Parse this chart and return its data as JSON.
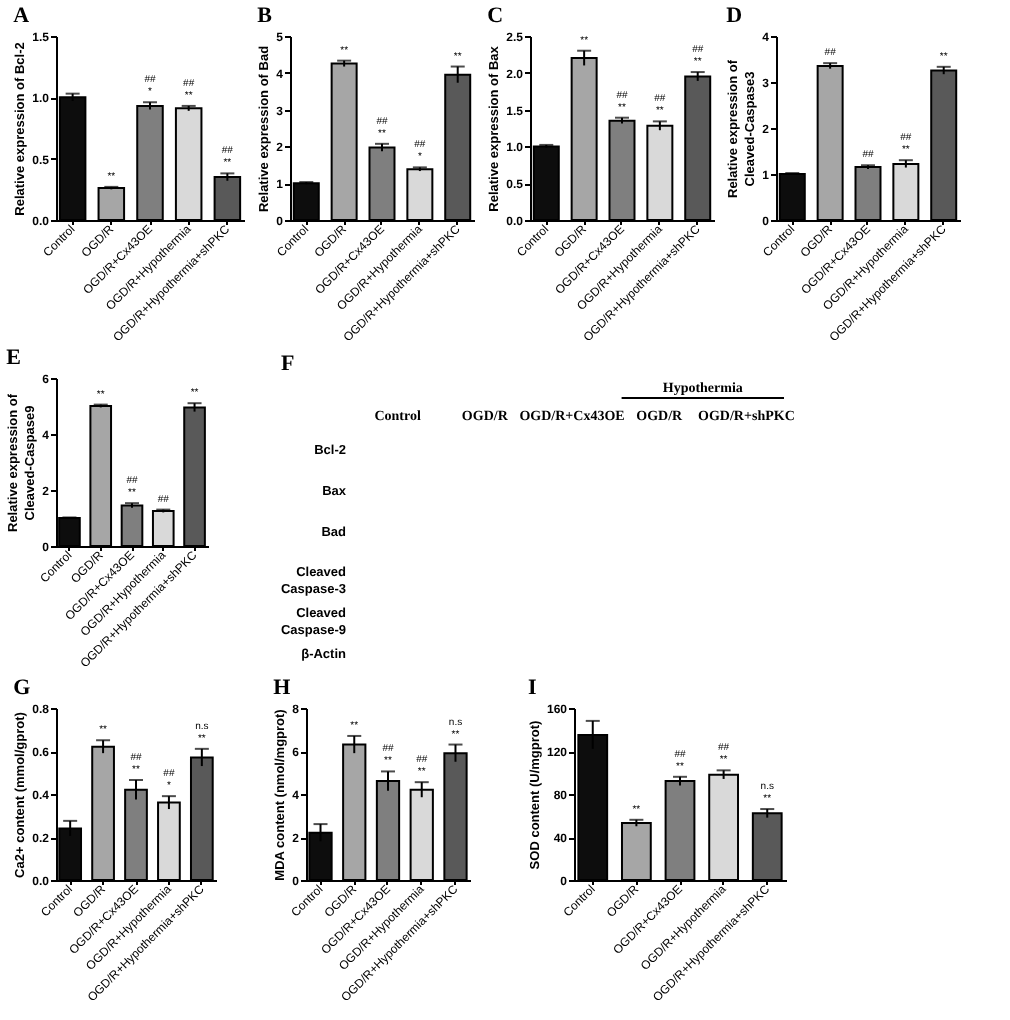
{
  "chart_data": [
    {
      "type": "bar",
      "title": "A",
      "ylabel": "Relative expression of Bcl-2",
      "categories": [
        "Control",
        "OGD/R",
        "OGD/R+Cx43OE",
        "OGD/R+Hypothermia",
        "OGD/R+Hypothermia+shPKC"
      ],
      "values": [
        1.0,
        0.26,
        0.93,
        0.91,
        0.35
      ],
      "errors": [
        0.03,
        0.01,
        0.03,
        0.02,
        0.03
      ],
      "colors": [
        "#0d0d0d",
        "#a6a6a6",
        "#7f7f7f",
        "#d9d9d9",
        "#595959"
      ],
      "ylim": [
        0,
        1.5
      ],
      "yticks": [
        {
          "value": 0,
          "label": "0.0"
        },
        0.5,
        {
          "value": 1,
          "label": "1.0"
        },
        1.5
      ],
      "annotations": [
        {
          "text": "**",
          "x": "OGD/R",
          "y": 0.27
        },
        {
          "text": "*",
          "x": "OGD/R+Cx43OE",
          "y": 0.96
        },
        {
          "text": "##",
          "x": "OGD/R+Cx43OE",
          "y": 0.96
        },
        {
          "text": "**",
          "x": "OGD/R+Hypothermia",
          "y": 0.93
        },
        {
          "text": "##",
          "x": "OGD/R+Hypothermia",
          "y": 0.93
        },
        {
          "text": "**",
          "x": "OGD/R+Hypothermia+shPKC",
          "y": 0.38
        },
        {
          "text": "##",
          "x": "OGD/R+Hypothermia+shPKC",
          "y": 0.38
        }
      ]
    },
    {
      "type": "bar",
      "title": "B",
      "ylabel": "Relative expression of Bad",
      "categories": [
        "Control",
        "OGD/R",
        "OGD/R+Cx43OE",
        "OGD/R+Hypothermia",
        "OGD/R+Hypothermia+shPKC"
      ],
      "values": [
        1.0,
        4.25,
        1.97,
        1.38,
        3.95
      ],
      "errors": [
        0.03,
        0.08,
        0.1,
        0.05,
        0.22
      ],
      "colors": [
        "#0d0d0d",
        "#a6a6a6",
        "#7f7f7f",
        "#d9d9d9",
        "#595959"
      ],
      "ylim": [
        0,
        5
      ],
      "yticks": [
        0,
        1,
        2,
        3,
        4,
        5
      ],
      "annotations": [
        {
          "text": "**",
          "x": "OGD/R",
          "y": 4.33
        },
        {
          "text": "**",
          "x": "OGD/R+Cx43OE",
          "y": 2.07
        },
        {
          "text": "##",
          "x": "OGD/R+Cx43OE",
          "y": 2.07
        },
        {
          "text": "*",
          "x": "OGD/R+Hypothermia",
          "y": 1.43
        },
        {
          "text": "##",
          "x": "OGD/R+Hypothermia",
          "y": 1.43
        },
        {
          "text": "**",
          "x": "OGD/R+Hypothermia+shPKC",
          "y": 4.17
        }
      ]
    },
    {
      "type": "bar",
      "title": "C",
      "ylabel": "Relative expression of Bax",
      "categories": [
        "Control",
        "OGD/R",
        "OGD/R+Cx43OE",
        "OGD/R+Hypothermia",
        "OGD/R+Hypothermia+shPKC"
      ],
      "values": [
        1.0,
        2.2,
        1.35,
        1.28,
        1.95
      ],
      "errors": [
        0.02,
        0.1,
        0.04,
        0.06,
        0.06
      ],
      "colors": [
        "#0d0d0d",
        "#a6a6a6",
        "#7f7f7f",
        "#d9d9d9",
        "#595959"
      ],
      "ylim": [
        0,
        2.5
      ],
      "yticks": [
        {
          "value": 0,
          "label": "0.0"
        },
        0.5,
        {
          "value": 1,
          "label": "1.0"
        },
        1.5,
        {
          "value": 2,
          "label": "2.0"
        },
        2.5
      ],
      "annotations": [
        {
          "text": "**",
          "x": "OGD/R",
          "y": 2.3
        },
        {
          "text": "**",
          "x": "OGD/R+Cx43OE",
          "y": 1.39
        },
        {
          "text": "##",
          "x": "OGD/R+Cx43OE",
          "y": 1.39
        },
        {
          "text": "**",
          "x": "OGD/R+Hypothermia",
          "y": 1.34
        },
        {
          "text": "##",
          "x": "OGD/R+Hypothermia",
          "y": 1.34
        },
        {
          "text": "**",
          "x": "OGD/R+Hypothermia+shPKC",
          "y": 2.01
        },
        {
          "text": "##",
          "x": "OGD/R+Hypothermia+shPKC",
          "y": 2.01
        }
      ]
    },
    {
      "type": "bar",
      "title": "D",
      "ylabel": "Relative expression of\nCleaved-Caspase3",
      "categories": [
        "Control",
        "OGD/R",
        "OGD/R+Cx43OE",
        "OGD/R+Hypothermia",
        "OGD/R+Hypothermia+shPKC"
      ],
      "values": [
        1.0,
        3.35,
        1.15,
        1.22,
        3.25
      ],
      "errors": [
        0.02,
        0.06,
        0.04,
        0.08,
        0.08
      ],
      "colors": [
        "#0d0d0d",
        "#a6a6a6",
        "#7f7f7f",
        "#d9d9d9",
        "#595959"
      ],
      "ylim": [
        0,
        4
      ],
      "yticks": [
        0,
        1,
        2,
        3,
        4
      ],
      "annotations": [
        {
          "text": "##",
          "x": "OGD/R",
          "y": 3.41
        },
        {
          "text": "##",
          "x": "OGD/R+Cx43OE",
          "y": 1.19
        },
        {
          "text": "**",
          "x": "OGD/R+Hypothermia",
          "y": 1.3
        },
        {
          "text": "##",
          "x": "OGD/R+Hypothermia",
          "y": 1.3
        },
        {
          "text": "**",
          "x": "OGD/R+Hypothermia+shPKC",
          "y": 3.33
        }
      ]
    },
    {
      "type": "bar",
      "title": "E",
      "ylabel": "Relative expression of\nCleaved-Caspase9",
      "categories": [
        "Control",
        "OGD/R",
        "OGD/R+Cx43OE",
        "OGD/R+Hypothermia",
        "OGD/R+Hypothermia+shPKC"
      ],
      "values": [
        1.0,
        5.0,
        1.45,
        1.25,
        4.95
      ],
      "errors": [
        0.02,
        0.05,
        0.08,
        0.05,
        0.15
      ],
      "colors": [
        "#0d0d0d",
        "#a6a6a6",
        "#7f7f7f",
        "#d9d9d9",
        "#595959"
      ],
      "ylim": [
        0,
        6
      ],
      "yticks": [
        0,
        2,
        4,
        6
      ],
      "annotations": [
        {
          "text": "**",
          "x": "OGD/R",
          "y": 5.05
        },
        {
          "text": "**",
          "x": "OGD/R+Cx43OE",
          "y": 1.53
        },
        {
          "text": "##",
          "x": "OGD/R+Cx43OE",
          "y": 1.53
        },
        {
          "text": "##",
          "x": "OGD/R+Hypothermia",
          "y": 1.3
        },
        {
          "text": "**",
          "x": "OGD/R+Hypothermia+shPKC",
          "y": 5.1
        }
      ]
    },
    {
      "type": "other",
      "title": "F",
      "categories": [
        "Control",
        "OGD/R",
        "OGD/R+Cx43OE",
        "OGD/R",
        "OGD/R+shPKC"
      ],
      "y_categories": [
        "Bcl-2",
        "Bax",
        "Bad",
        "Cleaved\nCaspase-3",
        "Cleaved\nCaspase-9",
        "β-Actin"
      ],
      "annotations": [
        "Hypothermia"
      ]
    },
    {
      "type": "bar",
      "title": "G",
      "ylabel": "Ca2+ content (mmol/gprot)",
      "categories": [
        "Control",
        "OGD/R",
        "OGD/R+Cx43OE",
        "OGD/R+Hypothermia",
        "OGD/R+Hypothermia+shPKC"
      ],
      "values": [
        0.24,
        0.62,
        0.42,
        0.36,
        0.57
      ],
      "errors": [
        0.035,
        0.03,
        0.045,
        0.03,
        0.04
      ],
      "colors": [
        "#0d0d0d",
        "#a6a6a6",
        "#7f7f7f",
        "#d9d9d9",
        "#595959"
      ],
      "ylim": [
        0,
        0.8
      ],
      "yticks": [
        {
          "value": 0,
          "label": "0.0"
        },
        0.2,
        0.4,
        0.6,
        0.8
      ],
      "annotations": [
        {
          "text": "**",
          "x": "OGD/R",
          "y": 0.65
        },
        {
          "text": "**",
          "x": "OGD/R+Cx43OE",
          "y": 0.465
        },
        {
          "text": "##",
          "x": "OGD/R+Cx43OE",
          "y": 0.465
        },
        {
          "text": "*",
          "x": "OGD/R+Hypothermia",
          "y": 0.39
        },
        {
          "text": "##",
          "x": "OGD/R+Hypothermia",
          "y": 0.39
        },
        {
          "text": "**",
          "x": "OGD/R+Hypothermia+shPKC",
          "y": 0.61
        },
        {
          "text": "n.s",
          "x": "OGD/R+Hypothermia+shPKC",
          "y": 0.61
        }
      ]
    },
    {
      "type": "bar",
      "title": "H",
      "ylabel": "MDA content (nmol/mgprot)",
      "categories": [
        "Control",
        "OGD/R",
        "OGD/R+Cx43OE",
        "OGD/R+Hypothermia",
        "OGD/R+Hypothermia+shPKC"
      ],
      "values": [
        2.2,
        6.3,
        4.6,
        4.2,
        5.9
      ],
      "errors": [
        0.4,
        0.4,
        0.45,
        0.35,
        0.4
      ],
      "colors": [
        "#0d0d0d",
        "#a6a6a6",
        "#7f7f7f",
        "#d9d9d9",
        "#595959"
      ],
      "ylim": [
        0,
        8
      ],
      "yticks": [
        0,
        2,
        4,
        6,
        8
      ],
      "annotations": [
        {
          "text": "**",
          "x": "OGD/R",
          "y": 6.7
        },
        {
          "text": "**",
          "x": "OGD/R+Cx43OE",
          "y": 5.05
        },
        {
          "text": "##",
          "x": "OGD/R+Cx43OE",
          "y": 5.05
        },
        {
          "text": "**",
          "x": "OGD/R+Hypothermia",
          "y": 4.55
        },
        {
          "text": "##",
          "x": "OGD/R+Hypothermia",
          "y": 4.55
        },
        {
          "text": "**",
          "x": "OGD/R+Hypothermia+shPKC",
          "y": 6.3
        },
        {
          "text": "n.s",
          "x": "OGD/R+Hypothermia+shPKC",
          "y": 6.3
        }
      ]
    },
    {
      "type": "bar",
      "title": "I",
      "ylabel": "SOD content (U/mgprot)",
      "categories": [
        "Control",
        "OGD/R",
        "OGD/R+Cx43OE",
        "OGD/R+Hypothermia",
        "OGD/R+Hypothermia+shPKC"
      ],
      "values": [
        135,
        53,
        92,
        98,
        62
      ],
      "errors": [
        13,
        3,
        4,
        4,
        4
      ],
      "colors": [
        "#0d0d0d",
        "#a6a6a6",
        "#7f7f7f",
        "#d9d9d9",
        "#595959"
      ],
      "ylim": [
        0,
        160
      ],
      "yticks": [
        0,
        40,
        80,
        120,
        160
      ],
      "annotations": [
        {
          "text": "**",
          "x": "OGD/R",
          "y": 56
        },
        {
          "text": "**",
          "x": "OGD/R+Cx43OE",
          "y": 96
        },
        {
          "text": "##",
          "x": "OGD/R+Cx43OE",
          "y": 96
        },
        {
          "text": "**",
          "x": "OGD/R+Hypothermia",
          "y": 102
        },
        {
          "text": "##",
          "x": "OGD/R+Hypothermia",
          "y": 102
        },
        {
          "text": "**",
          "x": "OGD/R+Hypothermia+shPKC",
          "y": 66
        },
        {
          "text": "n.s",
          "x": "OGD/R+Hypothermia+shPKC",
          "y": 66
        }
      ]
    }
  ]
}
